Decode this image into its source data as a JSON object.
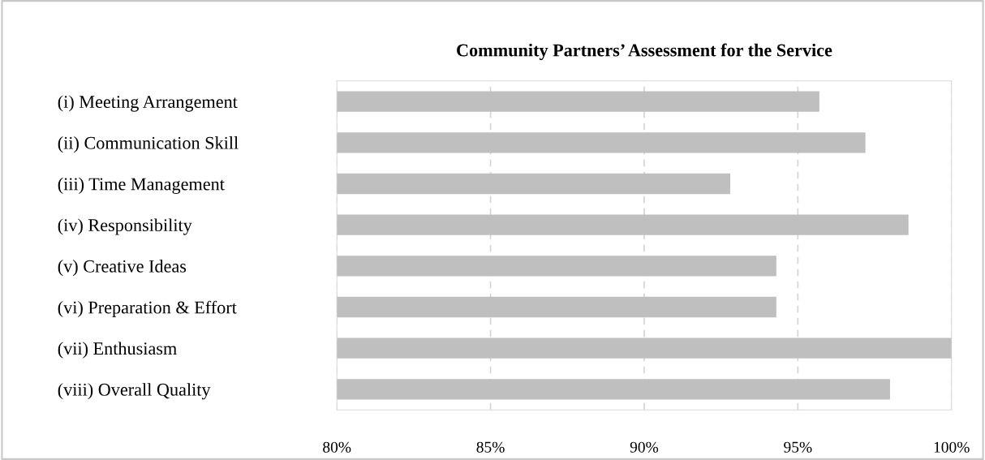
{
  "chart_data": {
    "type": "bar",
    "orientation": "horizontal",
    "title": "Community Partners’ Assessment for the Service",
    "categories": [
      "(i) Meeting Arrangement",
      "(ii) Communication Skill",
      "(iii) Time Management",
      "(iv) Responsibility",
      "(v) Creative Ideas",
      "(vi) Preparation & Effort",
      "(vii) Enthusiasm",
      "(viii) Overall Quality"
    ],
    "values": [
      95.7,
      97.2,
      92.8,
      98.6,
      94.3,
      94.3,
      100,
      98.0
    ],
    "color": "#bfbfbf",
    "xlim": [
      80,
      100
    ],
    "xticks": [
      {
        "value": 80,
        "label": "80%"
      },
      {
        "value": 85,
        "label": "85%"
      },
      {
        "value": 90,
        "label": "90%"
      },
      {
        "value": 95,
        "label": "95%"
      },
      {
        "value": 100,
        "label": "100%"
      }
    ],
    "grid": "x",
    "line_style": "dashed"
  }
}
